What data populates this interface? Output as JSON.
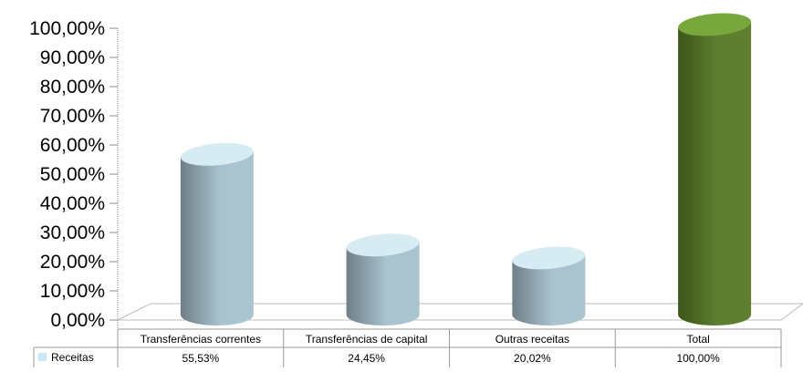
{
  "chart_data": {
    "type": "bar",
    "categories": [
      "Transferências correntes",
      "Transferências de capital",
      "Outras receitas",
      "Total"
    ],
    "series": [
      {
        "name": "Receitas",
        "values": [
          55.53,
          24.45,
          20.02,
          100.0
        ]
      }
    ],
    "value_labels": [
      "55,53%",
      "24,45%",
      "20,02%",
      "100,00%"
    ],
    "y_tick_labels": [
      "0,00%",
      "10,00%",
      "20,00%",
      "30,00%",
      "40,00%",
      "50,00%",
      "60,00%",
      "70,00%",
      "80,00%",
      "90,00%",
      "100,00%"
    ],
    "y_ticks": [
      0,
      10,
      20,
      30,
      40,
      50,
      60,
      70,
      80,
      90,
      100
    ],
    "ylim": [
      0,
      100
    ],
    "grid": false,
    "legend": "data-table",
    "bar_style": "3d-cylinder",
    "colors": {
      "default_bar": "#a9c3cf",
      "default_bar_dark": "#6f7f88",
      "default_top": "#d7ebf3",
      "highlight_bar": "#5e7f30",
      "highlight_dark": "#3c5519",
      "highlight_top": "#78a83c",
      "legend_swatch": "#c9e6f2"
    }
  }
}
